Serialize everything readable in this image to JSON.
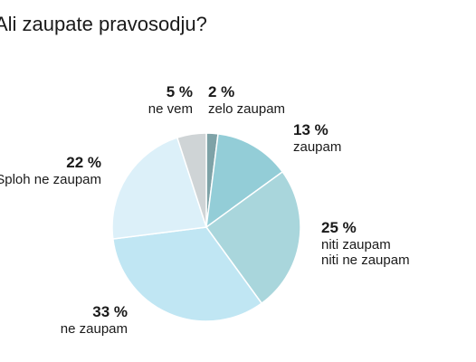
{
  "chart_data": {
    "type": "pie",
    "title": "Ali zaupate pravosodju?",
    "start": "top, clockwise",
    "slices": [
      {
        "value_label": "2 %",
        "value": 2,
        "label": [
          "zelo zaupam"
        ],
        "color": "#7ea2a7"
      },
      {
        "value_label": "13 %",
        "value": 13,
        "label": [
          "zaupam"
        ],
        "color": "#93cdd7"
      },
      {
        "value_label": "25 %",
        "value": 25,
        "label": [
          "niti zaupam",
          "niti ne zaupam"
        ],
        "color": "#a9d6dc"
      },
      {
        "value_label": "33 %",
        "value": 33,
        "label": [
          "ne zaupam"
        ],
        "color": "#c0e6f3"
      },
      {
        "value_label": "22 %",
        "value": 22,
        "label": [
          "Sploh ne zaupam"
        ],
        "color": "#dcf0f9"
      },
      {
        "value_label": "5 %",
        "value": 5,
        "label": [
          "ne vem"
        ],
        "color": "#cfd4d6"
      }
    ]
  }
}
